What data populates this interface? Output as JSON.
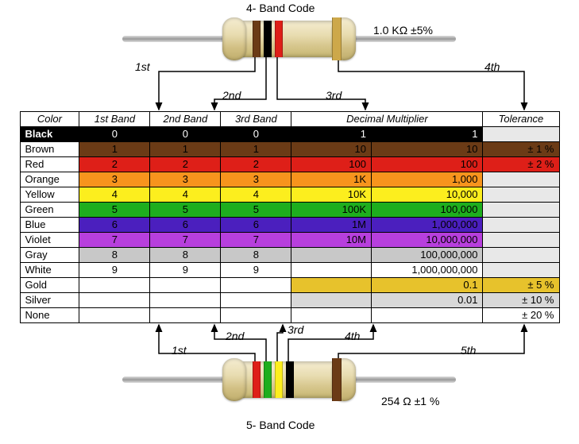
{
  "top": {
    "title": "4- Band Code",
    "value_text": "1.0 KΩ  ±5%",
    "bands": [
      {
        "color": "#6b3b16",
        "ord": "1st"
      },
      {
        "color": "#000000",
        "ord": "2nd"
      },
      {
        "color": "#de1f18",
        "ord": "3rd"
      }
    ],
    "tolerance_band": {
      "color": "#cda84a",
      "ord": "4th"
    }
  },
  "bottom": {
    "title": "5- Band Code",
    "value_text": "254 Ω  ±1 %",
    "bands": [
      {
        "color": "#de1f18",
        "ord": "1st"
      },
      {
        "color": "#1eae1e",
        "ord": "2nd"
      },
      {
        "color": "#fcee1e",
        "ord": "3rd"
      },
      {
        "color": "#000000",
        "ord": "4th"
      }
    ],
    "tolerance_band": {
      "color": "#6b3b16",
      "ord": "5th"
    }
  },
  "table": {
    "headers": {
      "color": "Color",
      "b1": "1st Band",
      "b2": "2nd Band",
      "b3": "3rd Band",
      "mult": "Decimal Multiplier",
      "tol": "Tolerance"
    },
    "rows": [
      {
        "name": "Black",
        "bg": "#000000",
        "fg": "#ffffff",
        "d": "0",
        "mk": "1",
        "mv": "1",
        "tol": ""
      },
      {
        "name": "Brown",
        "bg": "#6b3b16",
        "fg": "#000000",
        "d": "1",
        "mk": "10",
        "mv": "10",
        "tol": "±   1 %"
      },
      {
        "name": "Red",
        "bg": "#de1f18",
        "fg": "#000000",
        "d": "2",
        "mk": "100",
        "mv": "100",
        "tol": "±   2 %"
      },
      {
        "name": "Orange",
        "bg": "#f7941d",
        "fg": "#000000",
        "d": "3",
        "mk": "1K",
        "mv": "1,000",
        "tol": ""
      },
      {
        "name": "Yellow",
        "bg": "#fcee1e",
        "fg": "#000000",
        "d": "4",
        "mk": "10K",
        "mv": "10,000",
        "tol": ""
      },
      {
        "name": "Green",
        "bg": "#1eae1e",
        "fg": "#000000",
        "d": "5",
        "mk": "100K",
        "mv": "100,000",
        "tol": ""
      },
      {
        "name": "Blue",
        "bg": "#4b1fbe",
        "fg": "#000000",
        "d": "6",
        "mk": "1M",
        "mv": "1,000,000",
        "tol": ""
      },
      {
        "name": "Violet",
        "bg": "#b73fdd",
        "fg": "#000000",
        "d": "7",
        "mk": "10M",
        "mv": "10,000,000",
        "tol": ""
      },
      {
        "name": "Gray",
        "bg": "#c8c8c8",
        "fg": "#000000",
        "d": "8",
        "mk": "",
        "mv": "100,000,000",
        "tol": ""
      },
      {
        "name": "White",
        "bg": "#ffffff",
        "fg": "#000000",
        "d": "9",
        "mk": "",
        "mv": "1,000,000,000",
        "tol": ""
      },
      {
        "name": "Gold",
        "bg": "#e7c22c",
        "fg": "#000000",
        "d": "",
        "mk": "",
        "mv": "0.1",
        "tol": "±   5 %"
      },
      {
        "name": "Silver",
        "bg": "#d8d8d8",
        "fg": "#000000",
        "d": "",
        "mk": "",
        "mv": "0.01",
        "tol": "±  10 %"
      },
      {
        "name": "None",
        "bg": "#ffffff",
        "fg": "#000000",
        "d": "",
        "mk": "",
        "mv": "",
        "tol": "±  20 %"
      }
    ]
  }
}
